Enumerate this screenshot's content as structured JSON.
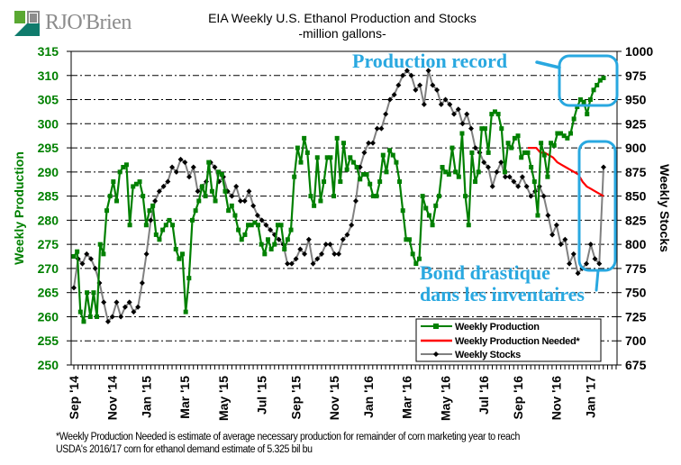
{
  "logo": {
    "text": "RJO'Brien",
    "mark_colors": [
      "#5aa832",
      "#0f7b6c",
      "#8c8c8c"
    ]
  },
  "chart_data": {
    "type": "line",
    "title": "EIA Weekly U.S. Ethanol Production and Stocks",
    "subtitle": "-million  gallons-",
    "ylabel": "Weekly Production",
    "y2label": "Weekly Stocks",
    "ylim": [
      250,
      315
    ],
    "y2lim": [
      675,
      1000
    ],
    "yticks": [
      250,
      255,
      260,
      265,
      270,
      275,
      280,
      285,
      290,
      295,
      300,
      305,
      310,
      315
    ],
    "y2ticks": [
      675,
      700,
      725,
      750,
      775,
      800,
      825,
      850,
      875,
      900,
      925,
      950,
      975,
      1000
    ],
    "grid": true,
    "x_tick_labels": [
      "Sep '14",
      "Nov '14",
      "Jan '15",
      "Mar '15",
      "May '15",
      "Jul '15",
      "Sep '15",
      "Nov '15",
      "Jan '16",
      "Mar '16",
      "May '16",
      "Jul '16",
      "Sep '16",
      "Nov '16",
      "Jan '17"
    ],
    "x_tick_weeks": [
      0,
      9,
      17,
      26,
      35,
      44,
      52,
      61,
      69,
      78,
      87,
      96,
      104,
      113,
      121
    ],
    "legend_position": "bottom-right",
    "colors": {
      "production": "#008000",
      "needed": "#ff0000",
      "stocks": "#808080",
      "stock_markers": "#000000",
      "annotation": "#29a8e0"
    },
    "series": [
      {
        "name": "Weekly Production",
        "axis": "left",
        "color": "#008000",
        "marker": "square",
        "values": [
          272.5,
          273.5,
          261,
          259,
          265,
          260,
          265,
          260,
          275,
          273,
          282,
          285,
          288,
          284,
          290,
          291,
          291.5,
          279,
          287,
          287.5,
          288,
          285,
          279,
          282,
          283,
          277,
          276,
          278,
          279,
          280,
          279,
          274,
          272,
          273,
          261,
          268,
          280,
          282,
          284,
          287,
          285,
          292,
          286,
          284,
          290,
          289.5,
          286,
          282,
          283,
          281,
          278,
          276,
          277,
          279,
          279,
          279.5,
          279,
          275,
          273,
          276,
          274,
          275,
          279,
          279,
          274,
          276,
          278,
          289,
          295,
          292,
          297,
          294,
          285,
          283,
          293,
          284,
          288,
          293,
          293,
          285,
          297,
          288,
          296,
          290.5,
          293,
          292,
          291,
          288.5,
          289.5,
          289.5,
          287.5,
          285,
          285,
          288,
          293.5,
          290,
          294.5,
          293.5,
          292,
          288,
          282,
          276,
          276,
          273,
          271,
          272,
          285,
          282.5,
          281,
          279,
          283,
          285,
          291,
          290,
          289.5,
          295,
          290,
          289,
          298,
          285,
          279,
          294,
          288,
          290,
          299,
          299,
          294,
          302,
          302.5,
          302,
          299,
          290,
          296,
          295,
          297,
          297.5,
          293,
          294,
          294,
          291,
          288,
          281,
          296,
          293.5,
          289,
          296,
          295.5,
          298,
          298,
          297.5,
          297,
          298,
          301,
          303.5,
          305,
          304.5,
          302,
          305,
          307,
          308,
          309,
          309.5
        ]
      },
      {
        "name": "Weekly Production Needed*",
        "axis": "left",
        "color": "#ff0000",
        "marker": "none",
        "start_week": 104,
        "values": [
          295,
          295,
          295,
          294,
          294,
          293.5,
          293,
          292,
          291.5,
          291,
          290.5,
          290,
          289.5,
          288,
          287,
          286.5,
          286,
          285.5,
          285
        ]
      },
      {
        "name": "Weekly Stocks",
        "axis": "right",
        "color": "#808080",
        "marker": "diamond",
        "values": [
          755,
          785,
          780,
          790,
          785,
          775,
          760,
          740,
          720,
          725,
          740,
          725,
          735,
          740,
          730,
          735,
          760,
          790,
          825,
          845,
          855,
          860,
          865,
          880,
          875,
          888,
          885,
          870,
          880,
          855,
          860,
          865,
          885,
          880,
          865,
          870,
          855,
          850,
          860,
          845,
          845,
          855,
          840,
          830,
          825,
          820,
          815,
          810,
          805,
          800,
          780,
          780,
          785,
          795,
          790,
          805,
          780,
          785,
          790,
          800,
          800,
          790,
          790,
          805,
          810,
          820,
          845,
          880,
          895,
          905,
          905,
          920,
          920,
          935,
          950,
          955,
          965,
          975,
          980,
          975,
          960,
          965,
          945,
          980,
          965,
          960,
          945,
          950,
          945,
          935,
          940,
          925,
          935,
          920,
          900,
          895,
          885,
          880,
          860,
          875,
          885,
          870,
          870,
          865,
          860,
          870,
          860,
          850,
          855,
          860,
          850,
          830,
          810,
          820,
          800,
          805,
          780,
          790,
          770,
          775,
          780,
          800,
          785,
          780,
          880
        ],
        "note": "Weekly Stocks is shown on the right axis in millions of gallons"
      }
    ],
    "legend": [
      "Weekly Production",
      "Weekly Production Needed*",
      "Weekly Stocks"
    ],
    "annotations": [
      {
        "text": "Production record",
        "target": "recent production peak near 310"
      },
      {
        "text_lines": [
          "Bond drastique",
          "dans les inventaires"
        ],
        "target": "recent jump in stocks"
      }
    ]
  },
  "footnote": {
    "line1": "*Weekly Production Needed is estimate of average necessary production for remainder of corn marketing year to reach",
    "line2": "USDA's  2016/17 corn for ethanol demand estimate of 5.325 bil bu"
  }
}
